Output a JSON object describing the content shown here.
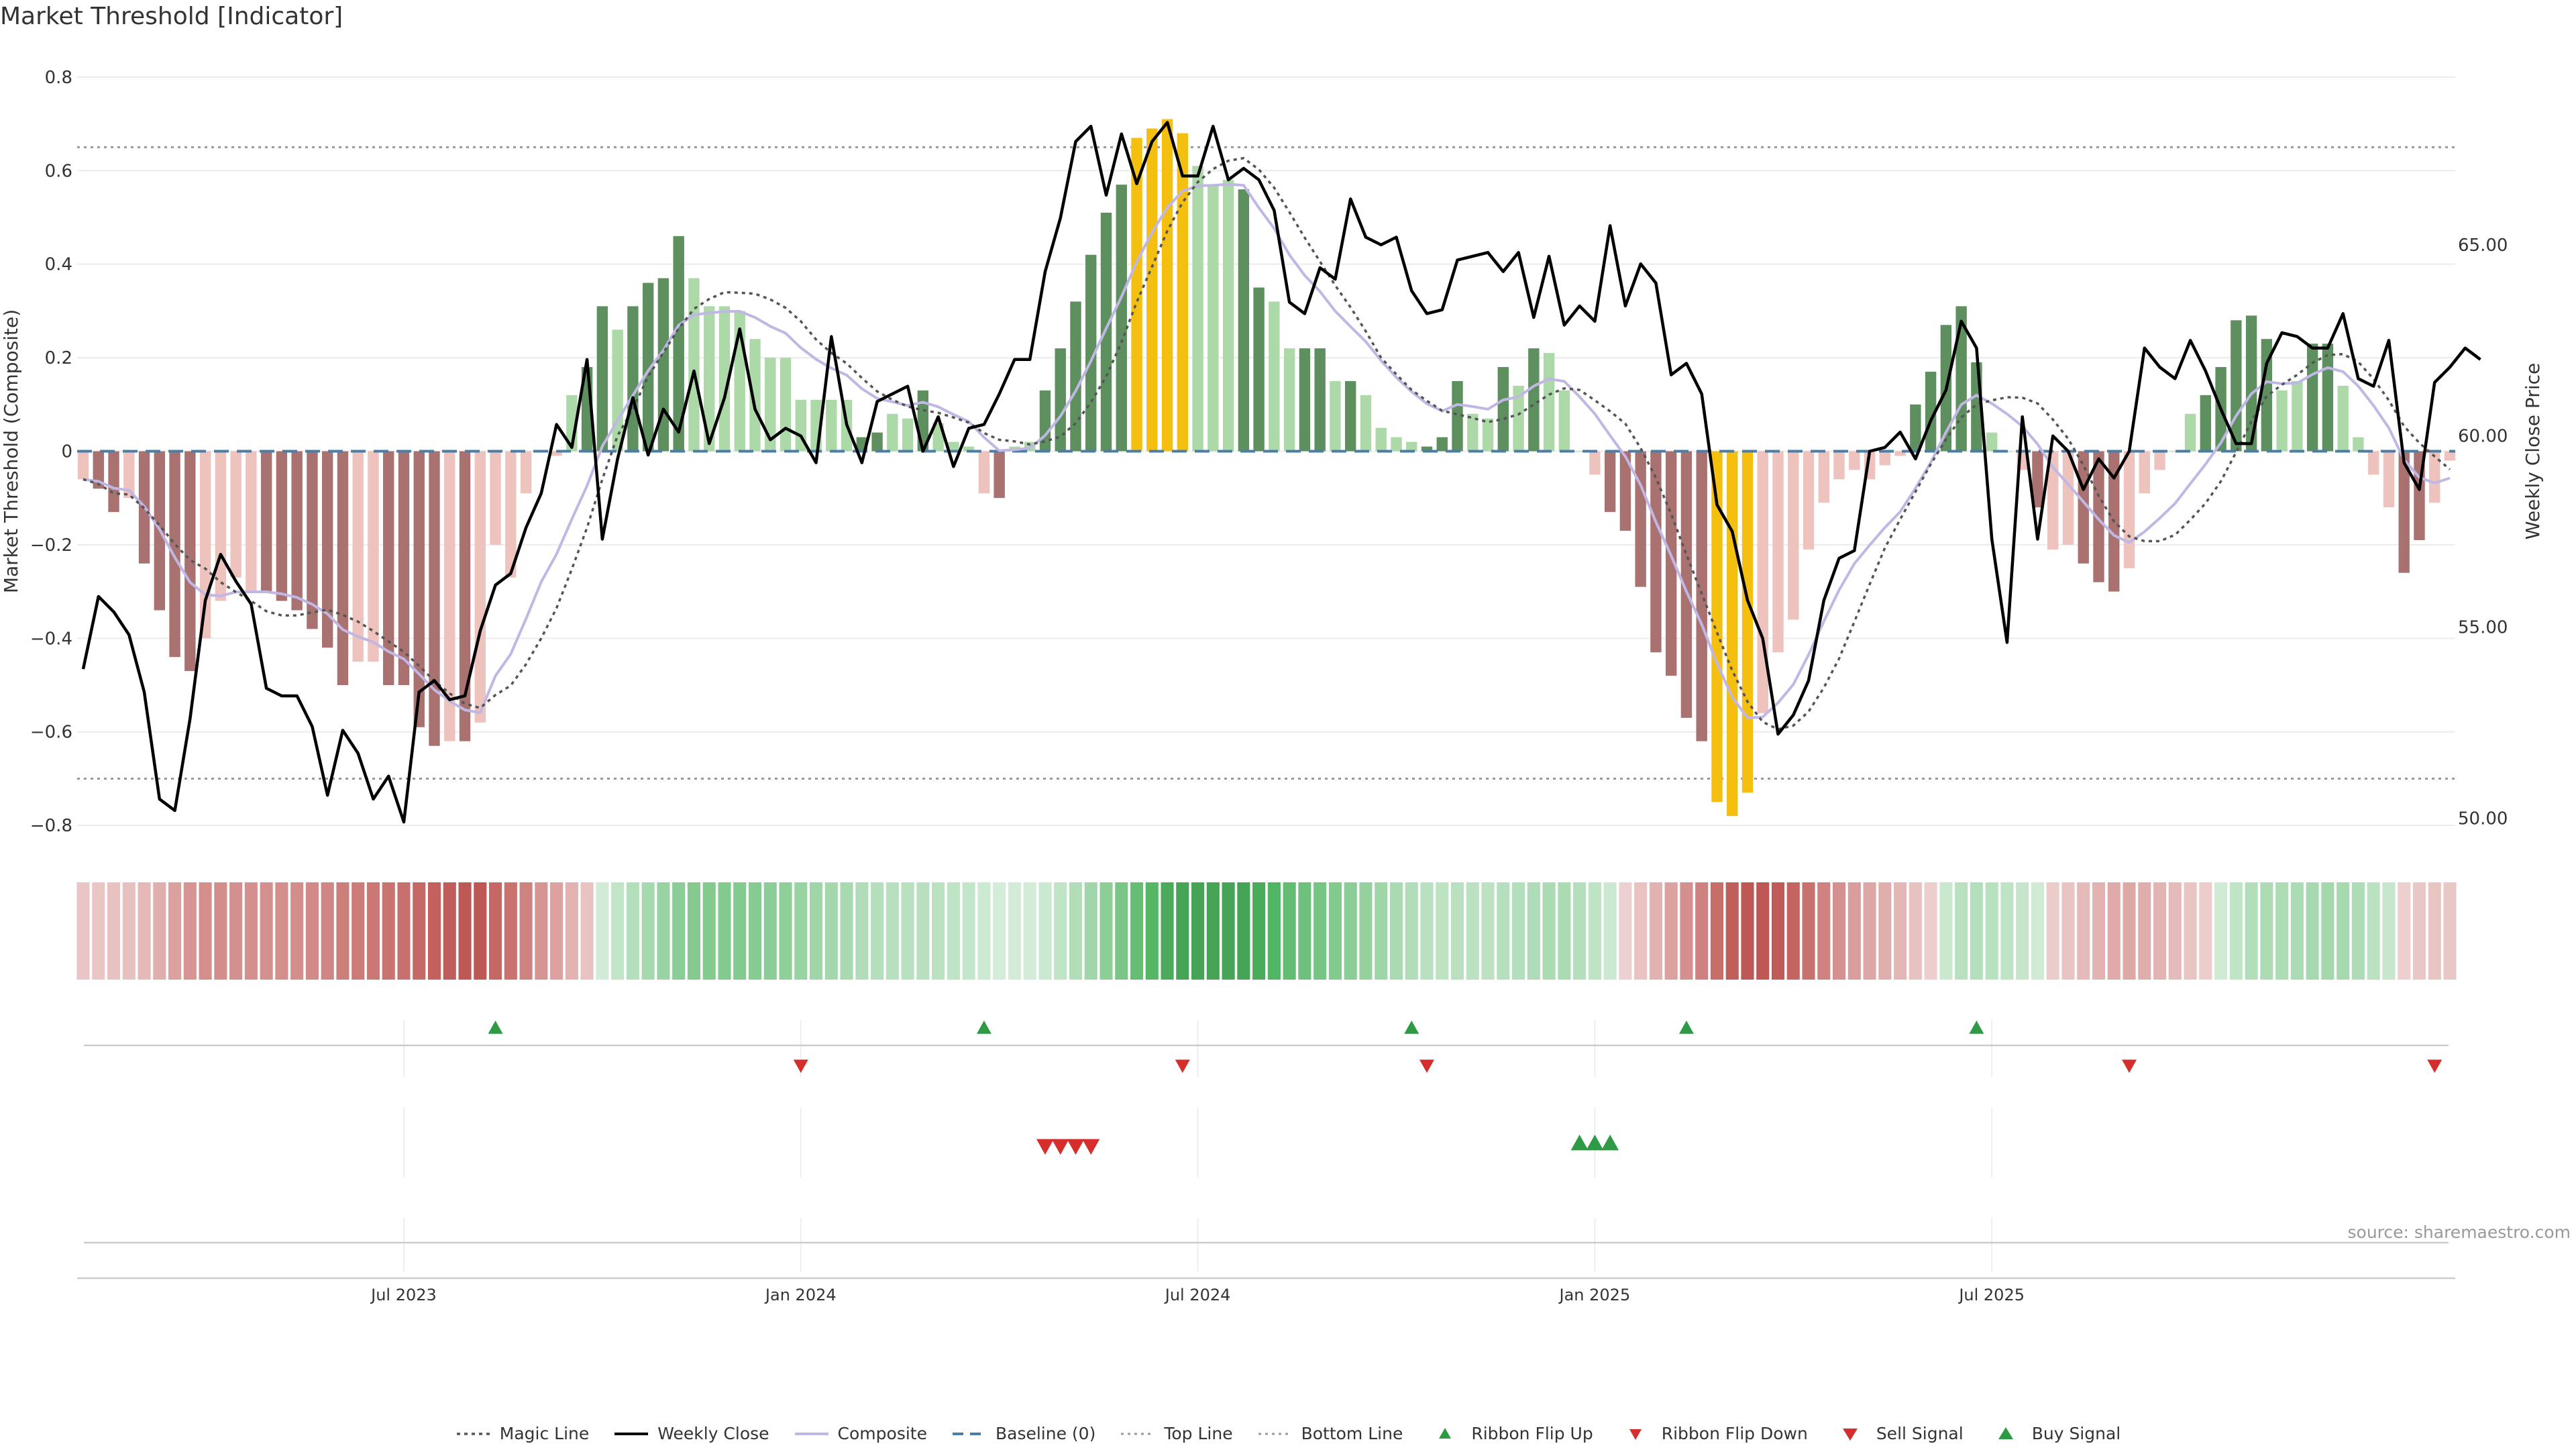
{
  "title": "Market Threshold [Indicator]",
  "source": "source: sharemaestro.com",
  "colors": {
    "bar_green_dark": "#5e8f5e",
    "bar_green_light": "#acd9a7",
    "bar_red_dark": "#a97270",
    "bar_red_light": "#eec2bd",
    "bar_gold": "#f5bf10",
    "weekly_close": "#000000",
    "composite": "#c0b7e4",
    "magic_line": "#555555",
    "baseline": "#4a7ea8",
    "threshold": "#999999",
    "flip_up": "#2e9a46",
    "flip_down": "#d62d2d"
  },
  "legend": [
    {
      "label": "Magic Line",
      "icon": "dotted-line"
    },
    {
      "label": "Weekly Close",
      "icon": "solid-line"
    },
    {
      "label": "Composite",
      "icon": "solid-light-line"
    },
    {
      "label": "Baseline (0)",
      "icon": "dashed-line"
    },
    {
      "label": "Top Line",
      "icon": "dotted-gray-line"
    },
    {
      "label": "Bottom Line",
      "icon": "dotted-gray-line"
    },
    {
      "label": "Ribbon Flip Up",
      "icon": "triangle-up-small"
    },
    {
      "label": "Ribbon Flip Down",
      "icon": "triangle-down-small"
    },
    {
      "label": "Sell Signal",
      "icon": "triangle-down"
    },
    {
      "label": "Buy Signal",
      "icon": "triangle-up"
    }
  ],
  "chart_data": {
    "type": "bar",
    "ylabel": "Market Threshold (Composite)",
    "ylabel_right": "Weekly Close Price",
    "ylim": [
      -0.85,
      0.85
    ],
    "ylim_right": [
      49.2,
      70.0
    ],
    "yticks": [
      "0.8",
      "0.6",
      "0.4",
      "0.2",
      "0",
      "−0.2",
      "−0.4",
      "−0.6",
      "−0.8"
    ],
    "yticks_right": [
      "65.00",
      "60.00",
      "55.00",
      "50.00"
    ],
    "xticks": [
      "Jul 2023",
      "Jan 2024",
      "Jul 2024",
      "Jan 2025",
      "Jul 2025"
    ],
    "top_line": 0.65,
    "bottom_line": -0.7,
    "baseline": 0,
    "composite_bars": [
      -0.06,
      -0.08,
      -0.13,
      -0.1,
      -0.24,
      -0.34,
      -0.44,
      -0.47,
      -0.4,
      -0.32,
      -0.27,
      -0.3,
      -0.3,
      -0.32,
      -0.34,
      -0.38,
      -0.42,
      -0.5,
      -0.45,
      -0.45,
      -0.5,
      -0.5,
      -0.59,
      -0.63,
      -0.62,
      -0.62,
      -0.58,
      -0.2,
      -0.27,
      -0.09,
      0,
      -0.01,
      0.12,
      0.18,
      0.31,
      0.26,
      0.31,
      0.36,
      0.37,
      0.46,
      0.37,
      0.31,
      0.31,
      0.3,
      0.24,
      0.2,
      0.2,
      0.11,
      0.11,
      0.11,
      0.11,
      0.03,
      0.04,
      0.08,
      0.07,
      0.13,
      0.06,
      0.02,
      0.01,
      -0.09,
      -0.1,
      0.01,
      0.02,
      0.13,
      0.22,
      0.32,
      0.42,
      0.51,
      0.57,
      0.67,
      0.69,
      0.71,
      0.68,
      0.61,
      0.57,
      0.58,
      0.56,
      0.35,
      0.32,
      0.22,
      0.22,
      0.22,
      0.15,
      0.15,
      0.12,
      0.05,
      0.03,
      0.02,
      0.01,
      0.03,
      0.15,
      0.08,
      0.07,
      0.18,
      0.14,
      0.22,
      0.21,
      0.13,
      0,
      -0.05,
      -0.13,
      -0.17,
      -0.29,
      -0.43,
      -0.48,
      -0.57,
      -0.62,
      -0.75,
      -0.78,
      -0.73,
      -0.56,
      -0.43,
      -0.36,
      -0.21,
      -0.11,
      -0.06,
      -0.04,
      -0.06,
      -0.03,
      -0.01,
      0.1,
      0.17,
      0.27,
      0.31,
      0.19,
      0.04,
      0,
      -0.04,
      -0.12,
      -0.21,
      -0.2,
      -0.24,
      -0.28,
      -0.3,
      -0.25,
      -0.09,
      -0.04,
      0,
      0.08,
      0.12,
      0.18,
      0.28,
      0.29,
      0.24,
      0.13,
      0.15,
      0.23,
      0.23,
      0.14,
      0.03,
      -0.05,
      -0.12,
      -0.26,
      -0.19,
      -0.11,
      -0.02
    ],
    "bar_styles": [
      "rl",
      "rd",
      "rd",
      "rl",
      "rd",
      "rd",
      "rd",
      "rd",
      "rl",
      "rl",
      "rl",
      "rl",
      "rd",
      "rd",
      "rd",
      "rd",
      "rd",
      "rd",
      "rl",
      "rl",
      "rd",
      "rd",
      "rd",
      "rd",
      "rl",
      "rd",
      "rl",
      "rl",
      "rl",
      "rl",
      "gl",
      "rl",
      "gl",
      "gd",
      "gd",
      "gl",
      "gd",
      "gd",
      "gd",
      "gd",
      "gl",
      "gl",
      "gl",
      "gl",
      "gl",
      "gl",
      "gl",
      "gl",
      "gl",
      "gl",
      "gl",
      "gd",
      "gd",
      "gl",
      "gl",
      "gd",
      "gl",
      "gl",
      "gl",
      "rl",
      "rd",
      "gl",
      "gl",
      "gd",
      "gd",
      "gd",
      "gd",
      "gd",
      "gd",
      "go",
      "go",
      "go",
      "go",
      "gl",
      "gl",
      "gl",
      "gd",
      "gd",
      "gl",
      "gl",
      "gd",
      "gd",
      "gl",
      "gd",
      "gl",
      "gl",
      "gl",
      "gl",
      "gd",
      "gd",
      "gd",
      "gl",
      "gl",
      "gd",
      "gl",
      "gd",
      "gl",
      "gl",
      "gl",
      "rl",
      "rd",
      "rd",
      "rd",
      "rd",
      "rd",
      "rd",
      "rd",
      "ro",
      "ro",
      "ro",
      "rl",
      "rl",
      "rl",
      "rl",
      "rl",
      "rl",
      "rl",
      "rl",
      "rl",
      "rl",
      "gd",
      "gd",
      "gd",
      "gd",
      "gd",
      "gl",
      "gl",
      "rl",
      "rd",
      "rl",
      "rl",
      "rd",
      "rd",
      "rd",
      "rl",
      "rl",
      "rl",
      "gl",
      "gl",
      "gd",
      "gd",
      "gd",
      "gd",
      "gd",
      "gl",
      "gl",
      "gd",
      "gd",
      "gl",
      "gl",
      "rl",
      "rl",
      "rd",
      "rd",
      "rl",
      "rl"
    ],
    "weekly_close": [
      53.9,
      55.8,
      55.4,
      54.8,
      53.3,
      50.5,
      50.2,
      52.6,
      55.7,
      56.9,
      56.2,
      55.6,
      53.4,
      53.2,
      53.2,
      52.4,
      50.6,
      52.3,
      51.7,
      50.5,
      51.1,
      49.9,
      53.3,
      53.6,
      53.1,
      53.2,
      54.9,
      56.1,
      56.4,
      57.6,
      58.5,
      60.3,
      59.7,
      62.0,
      57.3,
      59.4,
      61.0,
      59.5,
      60.7,
      60.1,
      61.7,
      59.8,
      61.0,
      62.8,
      60.7,
      59.9,
      60.2,
      60.0,
      59.3,
      62.6,
      60.3,
      59.3,
      60.9,
      61.1,
      61.3,
      59.6,
      60.5,
      59.2,
      60.2,
      60.3,
      61.1,
      62.0,
      62.0,
      64.3,
      65.7,
      67.7,
      68.1,
      66.3,
      67.9,
      66.6,
      67.7,
      68.2,
      66.8,
      66.8,
      68.1,
      66.7,
      67.0,
      66.7,
      65.9,
      63.5,
      63.2,
      64.4,
      64.1,
      66.2,
      65.2,
      65.0,
      65.2,
      63.8,
      63.2,
      63.3,
      64.6,
      64.7,
      64.8,
      64.3,
      64.8,
      63.1,
      64.7,
      62.9,
      63.4,
      63.0,
      65.5,
      63.4,
      64.5,
      64.0,
      61.6,
      61.9,
      61.1,
      58.2,
      57.5,
      55.7,
      54.7,
      52.2,
      52.7,
      53.6,
      55.7,
      56.8,
      57.0,
      59.6,
      59.7,
      60.1,
      59.4,
      60.4,
      61.2,
      63.0,
      62.3,
      57.3,
      54.6,
      60.5,
      57.3,
      60.0,
      59.6,
      58.6,
      59.4,
      58.9,
      59.6,
      62.3,
      61.8,
      61.5,
      62.5,
      61.7,
      60.7,
      59.8,
      59.8,
      61.9,
      62.7,
      62.6,
      62.3,
      62.3,
      63.2,
      61.5,
      61.3,
      62.5,
      59.3,
      58.6,
      61.4,
      61.8,
      62.3,
      62.0
    ]
  }
}
